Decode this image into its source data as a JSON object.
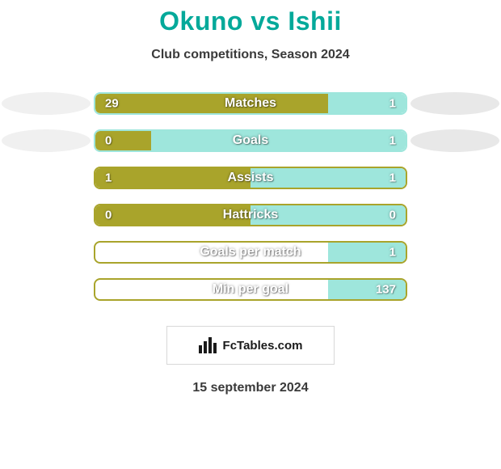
{
  "title": "Okuno vs Ishii",
  "subtitle": "Club competitions, Season 2024",
  "date": "15 september 2024",
  "logo_text": "FcTables.com",
  "colors": {
    "player1": "#a9a42b",
    "player2": "#9ee6dc",
    "border_default": "#a9a42b",
    "title_color": "#04a99a",
    "text_color": "#3a3a3a",
    "bg": "#ffffff"
  },
  "stats": [
    {
      "label": "Matches",
      "left_val": "29",
      "right_val": "1",
      "left_pct": 75,
      "right_pct": 25,
      "border_color": "#9ee6dc",
      "show_ovals": true
    },
    {
      "label": "Goals",
      "left_val": "0",
      "right_val": "1",
      "left_pct": 18,
      "right_pct": 82,
      "border_color": "#9ee6dc",
      "show_ovals": true
    },
    {
      "label": "Assists",
      "left_val": "1",
      "right_val": "1",
      "left_pct": 50,
      "right_pct": 50,
      "border_color": "#a9a42b",
      "show_ovals": false
    },
    {
      "label": "Hattricks",
      "left_val": "0",
      "right_val": "0",
      "left_pct": 50,
      "right_pct": 50,
      "border_color": "#a9a42b",
      "show_ovals": false
    },
    {
      "label": "Goals per match",
      "left_val": "",
      "right_val": "1",
      "left_pct": 0,
      "right_pct": 25,
      "border_color": "#a9a42b",
      "show_ovals": false
    },
    {
      "label": "Min per goal",
      "left_val": "",
      "right_val": "137",
      "left_pct": 0,
      "right_pct": 25,
      "border_color": "#a9a42b",
      "show_ovals": false
    }
  ]
}
